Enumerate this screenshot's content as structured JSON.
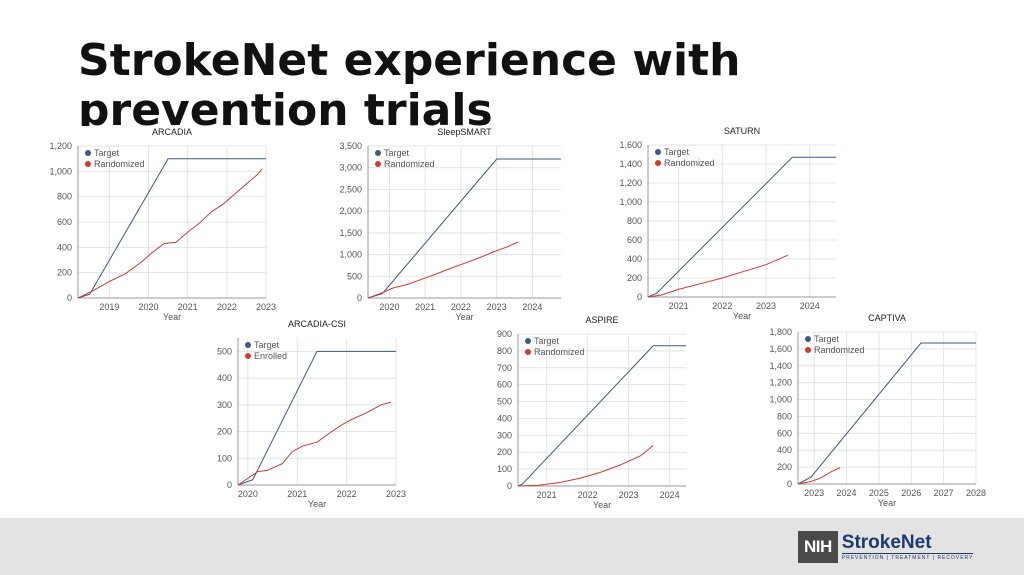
{
  "slide": {
    "title": "StrokeNet experience with prevention trials"
  },
  "logo": {
    "nih": "NIH",
    "name": "StrokeNet",
    "tagline": "PREVENTION | TREATMENT | RECOVERY"
  },
  "colors": {
    "target": "#3d5a80",
    "randomized": "#d43a2f",
    "grid": "#e4e4e4",
    "axis": "#999999",
    "text": "#555555"
  },
  "chart_data": [
    {
      "id": "arcadia",
      "type": "line",
      "title": "ARCADIA",
      "xlabel": "Year",
      "xlim": [
        2018.2,
        2023.0
      ],
      "ylim": [
        0,
        1200
      ],
      "yticks": [
        0,
        200,
        400,
        600,
        800,
        1000,
        1200
      ],
      "yticklabels": [
        "0",
        "200",
        "400",
        "600",
        "800",
        "1,000",
        "1,200"
      ],
      "xticks": [
        2019,
        2020,
        2021,
        2022,
        2023
      ],
      "xticklabels": [
        "2019",
        "2020",
        "2021",
        "2022",
        "2023"
      ],
      "legend": "top-left",
      "series": [
        {
          "name": "Target",
          "x": [
            2018.2,
            2018.5,
            2020.5,
            2023.0
          ],
          "y": [
            0,
            30,
            1100,
            1100
          ]
        },
        {
          "name": "Randomized",
          "x": [
            2018.2,
            2018.6,
            2019.0,
            2019.4,
            2019.8,
            2020.1,
            2020.4,
            2020.7,
            2021.0,
            2021.3,
            2021.6,
            2021.9,
            2022.2,
            2022.5,
            2022.8,
            2022.9
          ],
          "y": [
            0,
            60,
            130,
            190,
            280,
            360,
            430,
            440,
            520,
            590,
            680,
            740,
            820,
            900,
            980,
            1020
          ]
        }
      ]
    },
    {
      "id": "sleepsmart",
      "type": "line",
      "title": "SleepSMART",
      "xlabel": "Year",
      "xlim": [
        2019.4,
        2024.8
      ],
      "ylim": [
        0,
        3500
      ],
      "yticks": [
        0,
        500,
        1000,
        1500,
        2000,
        2500,
        3000,
        3500
      ],
      "yticklabels": [
        "0",
        "500",
        "1,000",
        "1,500",
        "2,000",
        "2,500",
        "3,000",
        "3,500"
      ],
      "xticks": [
        2020,
        2021,
        2022,
        2023,
        2024
      ],
      "xticklabels": [
        "2020",
        "2021",
        "2022",
        "2023",
        "2024"
      ],
      "legend": "top-left",
      "series": [
        {
          "name": "Target",
          "x": [
            2019.4,
            2019.8,
            2023.0,
            2024.8
          ],
          "y": [
            0,
            100,
            3200,
            3200
          ]
        },
        {
          "name": "Randomized",
          "x": [
            2019.4,
            2019.8,
            2020.1,
            2020.5,
            2020.9,
            2021.3,
            2021.7,
            2022.1,
            2022.5,
            2022.9,
            2023.3,
            2023.6
          ],
          "y": [
            0,
            120,
            230,
            310,
            430,
            550,
            680,
            800,
            920,
            1060,
            1180,
            1290
          ]
        }
      ]
    },
    {
      "id": "saturn",
      "type": "line",
      "title": "SATURN",
      "xlabel": "Year",
      "xlim": [
        2020.3,
        2024.6
      ],
      "ylim": [
        0,
        1600
      ],
      "yticks": [
        0,
        200,
        400,
        600,
        800,
        1000,
        1200,
        1400,
        1600
      ],
      "yticklabels": [
        "0",
        "200",
        "400",
        "600",
        "800",
        "1,000",
        "1,200",
        "1,400",
        "1,600"
      ],
      "xticks": [
        2021,
        2022,
        2023,
        2024
      ],
      "xticklabels": [
        "2021",
        "2022",
        "2023",
        "2024"
      ],
      "legend": "top-left",
      "series": [
        {
          "name": "Target",
          "x": [
            2020.3,
            2020.5,
            2023.6,
            2024.6
          ],
          "y": [
            0,
            40,
            1470,
            1470
          ]
        },
        {
          "name": "Randomized",
          "x": [
            2020.3,
            2020.6,
            2021.0,
            2021.5,
            2022.0,
            2022.5,
            2023.0,
            2023.5
          ],
          "y": [
            0,
            20,
            80,
            140,
            200,
            270,
            340,
            440
          ]
        }
      ]
    },
    {
      "id": "arcadia-csi",
      "type": "line",
      "title": "ARCADIA-CSI",
      "xlabel": "Year",
      "xlim": [
        2019.8,
        2023.0
      ],
      "ylim": [
        0,
        550
      ],
      "yticks": [
        0,
        100,
        200,
        300,
        400,
        500
      ],
      "yticklabels": [
        "0",
        "100",
        "200",
        "300",
        "400",
        "500"
      ],
      "xticks": [
        2020,
        2021,
        2022,
        2023
      ],
      "xticklabels": [
        "2020",
        "2021",
        "2022",
        "2023"
      ],
      "legend": "top-left",
      "series": [
        {
          "name": "Target",
          "x": [
            2019.8,
            2020.1,
            2021.4,
            2023.0
          ],
          "y": [
            0,
            20,
            500,
            500
          ]
        },
        {
          "name": "Enrolled",
          "x": [
            2019.8,
            2020.2,
            2020.4,
            2020.7,
            2020.9,
            2021.1,
            2021.4,
            2021.7,
            2021.9,
            2022.1,
            2022.4,
            2022.7,
            2022.9
          ],
          "y": [
            0,
            50,
            55,
            80,
            125,
            145,
            160,
            200,
            225,
            245,
            270,
            300,
            310
          ]
        }
      ]
    },
    {
      "id": "aspire",
      "type": "line",
      "title": "ASPIRE",
      "xlabel": "Year",
      "xlim": [
        2020.3,
        2024.4
      ],
      "ylim": [
        0,
        900
      ],
      "yticks": [
        0,
        100,
        200,
        300,
        400,
        500,
        600,
        700,
        800,
        900
      ],
      "yticklabels": [
        "0",
        "100",
        "200",
        "300",
        "400",
        "500",
        "600",
        "700",
        "800",
        "900"
      ],
      "xticks": [
        2021,
        2022,
        2023,
        2024
      ],
      "xticklabels": [
        "2021",
        "2022",
        "2023",
        "2024"
      ],
      "legend": "top-left",
      "series": [
        {
          "name": "Target",
          "x": [
            2020.3,
            2020.4,
            2023.6,
            2024.4
          ],
          "y": [
            0,
            10,
            830,
            830
          ]
        },
        {
          "name": "Randomized",
          "x": [
            2020.3,
            2020.8,
            2021.3,
            2021.8,
            2022.3,
            2022.8,
            2023.3,
            2023.6
          ],
          "y": [
            0,
            5,
            20,
            45,
            80,
            125,
            180,
            240
          ]
        }
      ]
    },
    {
      "id": "captiva",
      "type": "line",
      "title": "CAPTIVA",
      "xlabel": "Year",
      "xlim": [
        2022.5,
        2028.0
      ],
      "ylim": [
        0,
        1800
      ],
      "yticks": [
        0,
        200,
        400,
        600,
        800,
        1000,
        1200,
        1400,
        1600,
        1800
      ],
      "yticklabels": [
        "0",
        "200",
        "400",
        "600",
        "800",
        "1,000",
        "1,200",
        "1,400",
        "1,600",
        "1,800"
      ],
      "xticks": [
        2023,
        2024,
        2025,
        2026,
        2027,
        2028
      ],
      "xticklabels": [
        "2023",
        "2024",
        "2025",
        "2026",
        "2027",
        "2028"
      ],
      "legend": "top-left",
      "series": [
        {
          "name": "Target",
          "x": [
            2022.5,
            2022.9,
            2026.3,
            2028.0
          ],
          "y": [
            0,
            80,
            1670,
            1670
          ]
        },
        {
          "name": "Randomized",
          "x": [
            2022.5,
            2022.9,
            2023.2,
            2023.5,
            2023.8
          ],
          "y": [
            0,
            30,
            70,
            140,
            195
          ]
        }
      ]
    }
  ]
}
